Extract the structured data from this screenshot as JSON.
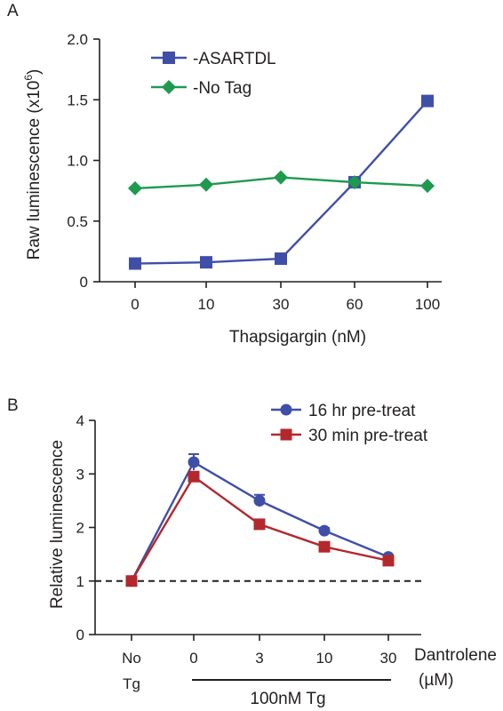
{
  "chart_data": [
    {
      "panel": "A",
      "type": "line",
      "ylabel": "Raw luminescence (x10",
      "ylabel_sup": "6",
      "ylabel_close": ")",
      "xlabel": "Thapsigargin (nM)",
      "categories": [
        "0",
        "10",
        "30",
        "60",
        "100"
      ],
      "ylim": [
        0,
        2.0
      ],
      "yticks": [
        "0",
        "0.5",
        "1.0",
        "1.5",
        "2.0"
      ],
      "ytick_values": [
        0,
        0.5,
        1.0,
        1.5,
        2.0
      ],
      "legend_position": "top-left",
      "series": [
        {
          "name": "-ASARTDL",
          "marker": "square",
          "color": "#3f4fa8",
          "values": [
            0.15,
            0.16,
            0.19,
            0.82,
            1.49
          ]
        },
        {
          "name": "-No Tag",
          "marker": "diamond",
          "color": "#1e9a4e",
          "values": [
            0.77,
            0.8,
            0.86,
            0.82,
            0.79
          ]
        }
      ]
    },
    {
      "panel": "B",
      "type": "line",
      "ylabel": "Relative luminescence",
      "xlabel": "Dantrolene",
      "xlabel_unit": "(µM)",
      "categories": [
        "No Tg",
        "0",
        "3",
        "10",
        "30"
      ],
      "category_lines": [
        [
          "No",
          "Tg"
        ],
        [
          "0"
        ],
        [
          "3"
        ],
        [
          "10"
        ],
        [
          "30"
        ]
      ],
      "bracket_label": "100nM Tg",
      "ylim": [
        0,
        4
      ],
      "yticks": [
        "0",
        "1",
        "2",
        "3",
        "4"
      ],
      "ytick_values": [
        0,
        1,
        2,
        3,
        4
      ],
      "reference_line": 1,
      "legend_position": "top-right",
      "series": [
        {
          "name": "16 hr pre-treat",
          "marker": "circle",
          "color": "#3f4fa8",
          "values": [
            1.0,
            3.22,
            2.5,
            1.94,
            1.45
          ],
          "errors": [
            0,
            0.15,
            0.11,
            0.05,
            0.03
          ]
        },
        {
          "name": "30 min pre-treat",
          "marker": "square",
          "color": "#b3282d",
          "values": [
            1.0,
            2.95,
            2.06,
            1.64,
            1.38
          ],
          "errors": [
            0,
            0.06,
            0.08,
            0.08,
            0.05
          ]
        }
      ]
    }
  ],
  "panel_labels": [
    "A",
    "B"
  ]
}
